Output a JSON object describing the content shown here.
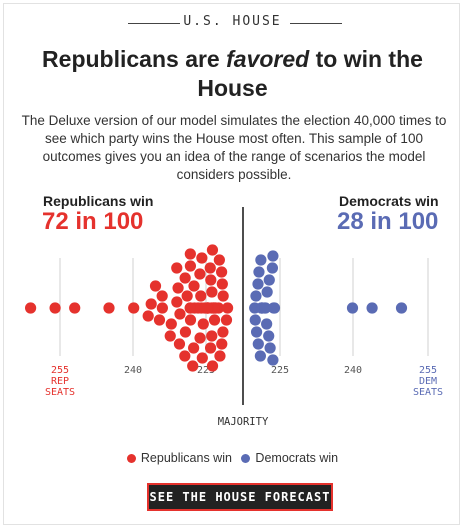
{
  "kicker": "U.S. HOUSE",
  "headline": {
    "part1": "Republicans are ",
    "emphasis": "favored",
    "part2": " to win the House"
  },
  "intro": "The Deluxe version of our model simulates the election 40,000 times to see which party wins the House most often. This sample of 100 outcomes gives you an idea of the range of scenarios the model considers possible.",
  "republicans": {
    "label": "Republicans win",
    "count": "72 in 100",
    "color": "#e5322d"
  },
  "democrats": {
    "label": "Democrats win",
    "count": "28 in 100",
    "color": "#5a6bb4"
  },
  "chart_data": {
    "type": "scatter",
    "xlabel": "",
    "ylabel": "",
    "majority_label": "MAJORITY",
    "majority_seats": 218,
    "tick_labels": [
      {
        "seats": 255,
        "party": "REP",
        "lines": [
          "255",
          "REP",
          "SEATS"
        ],
        "color": "#e5322d"
      },
      {
        "seats": 240,
        "party": "REP",
        "lines": [
          "240"
        ],
        "color": "#555555"
      },
      {
        "seats": 225,
        "party": "REP",
        "lines": [
          "225"
        ],
        "color": "#555555"
      },
      {
        "seats": 225,
        "party": "DEM",
        "lines": [
          "225"
        ],
        "color": "#555555"
      },
      {
        "seats": 240,
        "party": "DEM",
        "lines": [
          "240"
        ],
        "color": "#555555"
      },
      {
        "seats": 255,
        "party": "DEM",
        "lines": [
          "255",
          "DEM",
          "SEATS"
        ],
        "color": "#5a6bb4"
      }
    ],
    "series": [
      {
        "name": "Republicans win",
        "count": 72,
        "color": "#e5322d"
      },
      {
        "name": "Democrats win",
        "count": 28,
        "color": "#5a6bb4"
      }
    ]
  },
  "legend": {
    "rep_label": "Republicans win",
    "dem_label": "Democrats win"
  },
  "cta_label": "SEE THE HOUSE FORECAST"
}
